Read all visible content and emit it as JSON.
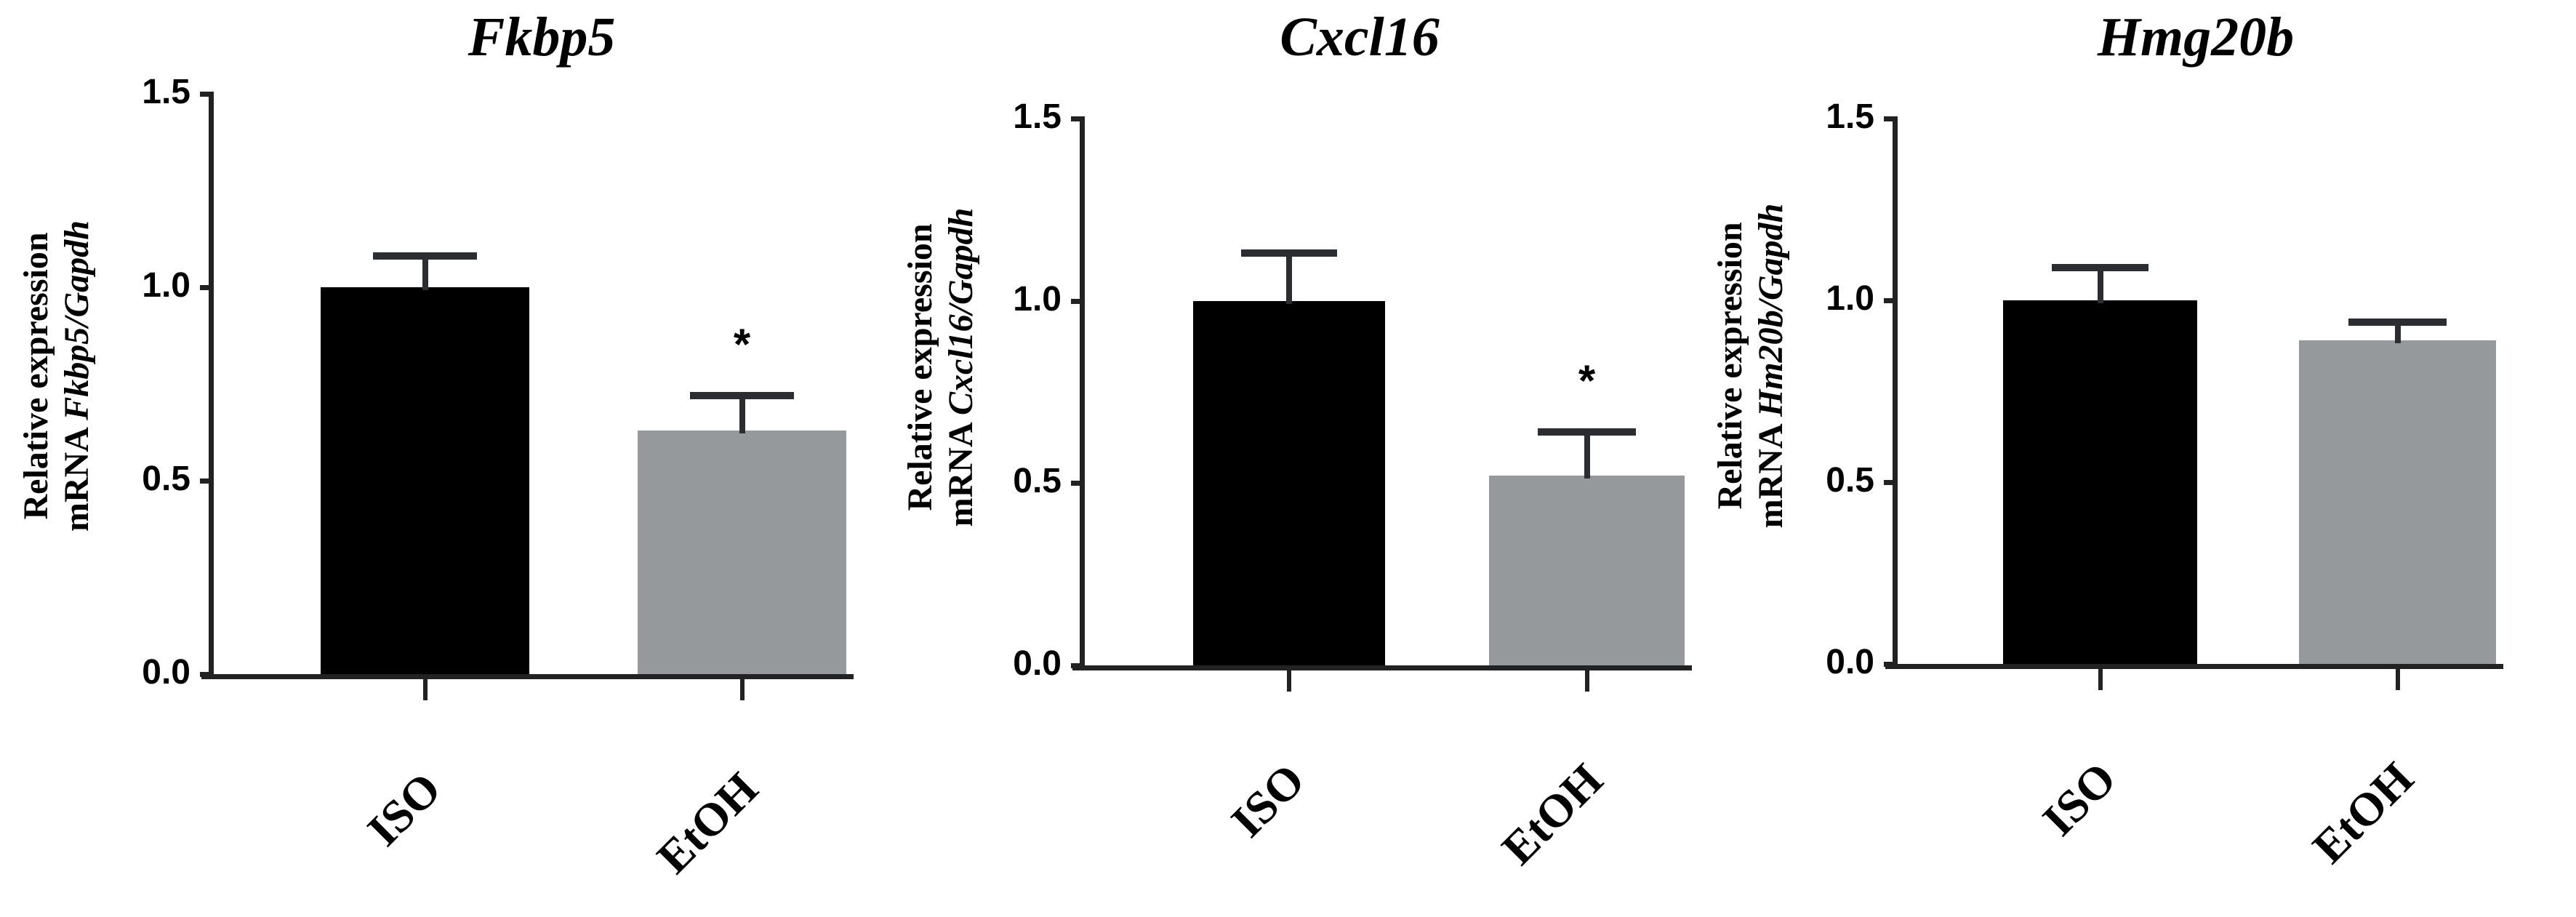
{
  "figure": {
    "x_categories": [
      "ISO",
      "EtOH"
    ],
    "y_ticks": [
      "0.0",
      "0.5",
      "1.0",
      "1.5"
    ],
    "colors": {
      "ISO": "#000000",
      "EtOH": "#96999c",
      "axis": "#222222"
    }
  },
  "panels": [
    {
      "title": "Fkbp5",
      "ylabel_line1": "Relative expression",
      "ylabel_line2_prefix": "mRNA ",
      "ylabel_line2_gene": "Fkbp5/Gapdh",
      "significance": [
        "",
        "*"
      ]
    },
    {
      "title": "Cxcl16",
      "ylabel_line1": "Relative expression",
      "ylabel_line2_prefix": "mRNA ",
      "ylabel_line2_gene": "Cxcl16/Gapdh",
      "significance": [
        "",
        "*"
      ]
    },
    {
      "title": "Hmg20b",
      "ylabel_line1": "Relative expression",
      "ylabel_line2_prefix": "mRNA ",
      "ylabel_line2_gene": "Hm20b/Gapdh",
      "significance": [
        "",
        ""
      ]
    }
  ],
  "chart_data": [
    {
      "type": "bar",
      "title": "Fkbp5",
      "categories": [
        "ISO",
        "EtOH"
      ],
      "values": [
        1.0,
        0.63
      ],
      "error": [
        0.08,
        0.09
      ],
      "significance": [
        "",
        "*"
      ],
      "xlabel": "",
      "ylabel": "Relative expression mRNA Fkbp5/Gapdh",
      "ylim": [
        0,
        1.5
      ],
      "yticks": [
        0.0,
        0.5,
        1.0,
        1.5
      ],
      "bar_colors": [
        "#000000",
        "#96999c"
      ],
      "grid": false,
      "legend": null
    },
    {
      "type": "bar",
      "title": "Cxcl16",
      "categories": [
        "ISO",
        "EtOH"
      ],
      "values": [
        1.0,
        0.52
      ],
      "error": [
        0.13,
        0.12
      ],
      "significance": [
        "",
        "*"
      ],
      "xlabel": "",
      "ylabel": "Relative expression mRNA Cxcl16/Gapdh",
      "ylim": [
        0,
        1.5
      ],
      "yticks": [
        0.0,
        0.5,
        1.0,
        1.5
      ],
      "bar_colors": [
        "#000000",
        "#96999c"
      ],
      "grid": false,
      "legend": null
    },
    {
      "type": "bar",
      "title": "Hmg20b",
      "categories": [
        "ISO",
        "EtOH"
      ],
      "values": [
        1.0,
        0.89
      ],
      "error": [
        0.09,
        0.05
      ],
      "significance": [
        "",
        ""
      ],
      "xlabel": "",
      "ylabel": "Relative expression mRNA Hm20b/Gapdh",
      "ylim": [
        0,
        1.5
      ],
      "yticks": [
        0.0,
        0.5,
        1.0,
        1.5
      ],
      "bar_colors": [
        "#000000",
        "#96999c"
      ],
      "grid": false,
      "legend": null
    }
  ]
}
